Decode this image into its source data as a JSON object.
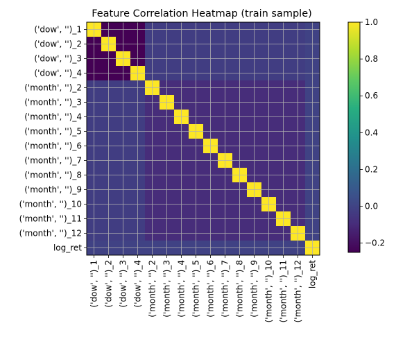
{
  "chart_data": {
    "type": "heatmap",
    "title": "Feature Correlation Heatmap (train sample)",
    "labels": [
      "('dow', '')_1",
      "('dow', '')_2",
      "('dow', '')_3",
      "('dow', '')_4",
      "('month', '')_2",
      "('month', '')_3",
      "('month', '')_4",
      "('month', '')_5",
      "('month', '')_6",
      "('month', '')_7",
      "('month', '')_8",
      "('month', '')_9",
      "('month', '')_10",
      "('month', '')_11",
      "('month', '')_12",
      "log_ret"
    ],
    "values": [
      [
        1.0,
        -0.25,
        -0.25,
        -0.25,
        -0.02,
        -0.02,
        -0.02,
        -0.02,
        -0.02,
        -0.02,
        -0.02,
        -0.02,
        -0.02,
        -0.02,
        -0.02,
        0.0
      ],
      [
        -0.25,
        1.0,
        -0.25,
        -0.25,
        -0.02,
        -0.02,
        -0.02,
        -0.02,
        -0.02,
        -0.02,
        -0.02,
        -0.02,
        -0.02,
        -0.02,
        -0.02,
        0.0
      ],
      [
        -0.25,
        -0.25,
        1.0,
        -0.25,
        -0.02,
        -0.02,
        -0.02,
        -0.02,
        -0.02,
        -0.02,
        -0.02,
        -0.02,
        -0.02,
        -0.02,
        -0.02,
        0.0
      ],
      [
        -0.25,
        -0.25,
        -0.25,
        1.0,
        -0.02,
        -0.02,
        -0.02,
        -0.02,
        -0.02,
        -0.02,
        -0.02,
        -0.02,
        -0.02,
        -0.02,
        -0.02,
        0.0
      ],
      [
        -0.02,
        -0.02,
        -0.02,
        -0.02,
        1.0,
        -0.09,
        -0.09,
        -0.09,
        -0.09,
        -0.09,
        -0.09,
        -0.09,
        -0.09,
        -0.09,
        -0.09,
        0.0
      ],
      [
        -0.02,
        -0.02,
        -0.02,
        -0.02,
        -0.09,
        1.0,
        -0.09,
        -0.09,
        -0.09,
        -0.09,
        -0.09,
        -0.09,
        -0.09,
        -0.09,
        -0.09,
        0.0
      ],
      [
        -0.02,
        -0.02,
        -0.02,
        -0.02,
        -0.09,
        -0.09,
        1.0,
        -0.09,
        -0.09,
        -0.09,
        -0.09,
        -0.09,
        -0.09,
        -0.09,
        -0.09,
        0.0
      ],
      [
        -0.02,
        -0.02,
        -0.02,
        -0.02,
        -0.09,
        -0.09,
        -0.09,
        1.0,
        -0.09,
        -0.09,
        -0.09,
        -0.09,
        -0.09,
        -0.09,
        -0.09,
        0.0
      ],
      [
        -0.02,
        -0.02,
        -0.02,
        -0.02,
        -0.09,
        -0.09,
        -0.09,
        -0.09,
        1.0,
        -0.09,
        -0.09,
        -0.09,
        -0.09,
        -0.09,
        -0.09,
        0.0
      ],
      [
        -0.02,
        -0.02,
        -0.02,
        -0.02,
        -0.09,
        -0.09,
        -0.09,
        -0.09,
        -0.09,
        1.0,
        -0.09,
        -0.09,
        -0.09,
        -0.09,
        -0.09,
        0.0
      ],
      [
        -0.02,
        -0.02,
        -0.02,
        -0.02,
        -0.09,
        -0.09,
        -0.09,
        -0.09,
        -0.09,
        -0.09,
        1.0,
        -0.09,
        -0.09,
        -0.09,
        -0.09,
        0.0
      ],
      [
        -0.02,
        -0.02,
        -0.02,
        -0.02,
        -0.09,
        -0.09,
        -0.09,
        -0.09,
        -0.09,
        -0.09,
        -0.09,
        1.0,
        -0.09,
        -0.09,
        -0.09,
        0.0
      ],
      [
        -0.02,
        -0.02,
        -0.02,
        -0.02,
        -0.09,
        -0.09,
        -0.09,
        -0.09,
        -0.09,
        -0.09,
        -0.09,
        -0.09,
        1.0,
        -0.09,
        -0.09,
        0.0
      ],
      [
        -0.02,
        -0.02,
        -0.02,
        -0.02,
        -0.09,
        -0.09,
        -0.09,
        -0.09,
        -0.09,
        -0.09,
        -0.09,
        -0.09,
        -0.09,
        1.0,
        -0.09,
        0.0
      ],
      [
        -0.02,
        -0.02,
        -0.02,
        -0.02,
        -0.09,
        -0.09,
        -0.09,
        -0.09,
        -0.09,
        -0.09,
        -0.09,
        -0.09,
        -0.09,
        -0.09,
        1.0,
        0.0
      ],
      [
        0.0,
        0.0,
        0.0,
        0.0,
        0.0,
        0.0,
        0.0,
        0.0,
        0.0,
        0.0,
        0.0,
        0.0,
        0.0,
        0.0,
        0.0,
        1.0
      ]
    ],
    "colormap": "viridis",
    "vmin": -0.25,
    "vmax": 1.0,
    "colorbar_ticks": [
      -0.2,
      0.0,
      0.2,
      0.4,
      0.6,
      0.8,
      1.0
    ],
    "colorbar_tick_labels": [
      "−0.2",
      "0.0",
      "0.2",
      "0.4",
      "0.6",
      "0.8",
      "1.0"
    ],
    "grid": true,
    "grid_color": "#b0b0b0"
  }
}
